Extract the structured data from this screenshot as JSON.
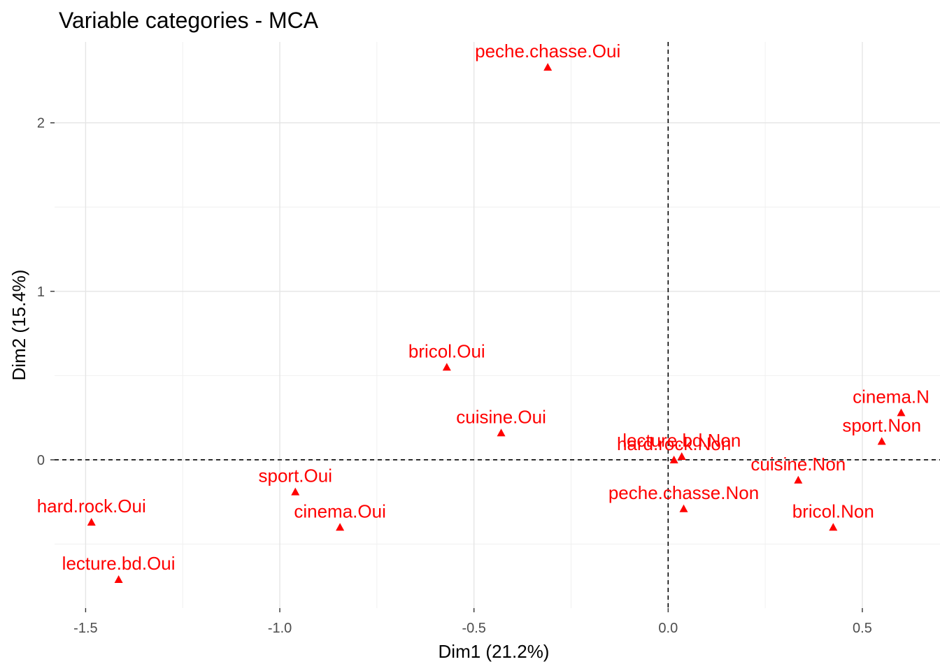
{
  "chart_data": {
    "type": "scatter",
    "title": "Variable categories - MCA",
    "xlabel": "Dim1 (21.2%)",
    "ylabel": "Dim2 (15.4%)",
    "xlim": [
      -1.58,
      0.7
    ],
    "ylim": [
      -0.88,
      2.48
    ],
    "xticks": [
      -1.5,
      -1.0,
      -0.5,
      0.0,
      0.5
    ],
    "xtick_labels": [
      "-1.5",
      "-1.0",
      "-0.5",
      "0.0",
      "0.5"
    ],
    "yticks": [
      0,
      1,
      2
    ],
    "ytick_labels": [
      "0",
      "1",
      "2"
    ],
    "grid": true,
    "reference_lines": {
      "x": 0,
      "y": 0,
      "style": "dashed"
    },
    "marker": "triangle",
    "color": "#ff0000",
    "points": [
      {
        "label": "peche.chasse.Oui",
        "x": -0.31,
        "y": 2.33
      },
      {
        "label": "bricol.Oui",
        "x": -0.57,
        "y": 0.55
      },
      {
        "label": "cuisine.Oui",
        "x": -0.43,
        "y": 0.16
      },
      {
        "label": "cinema.Non",
        "x": 0.6,
        "y": 0.28
      },
      {
        "label": "sport.Non",
        "x": 0.55,
        "y": 0.11
      },
      {
        "label": "lecture.bd.Non",
        "x": 0.035,
        "y": 0.02
      },
      {
        "label": "hard.rock.Non",
        "x": 0.015,
        "y": 0.0
      },
      {
        "label": "cuisine.Non",
        "x": 0.335,
        "y": -0.12
      },
      {
        "label": "peche.chasse.Non",
        "x": 0.04,
        "y": -0.29
      },
      {
        "label": "bricol.Non",
        "x": 0.425,
        "y": -0.4
      },
      {
        "label": "sport.Oui",
        "x": -0.96,
        "y": -0.19
      },
      {
        "label": "cinema.Oui",
        "x": -0.845,
        "y": -0.4
      },
      {
        "label": "hard.rock.Oui",
        "x": -1.485,
        "y": -0.37
      },
      {
        "label": "lecture.bd.Oui",
        "x": -1.415,
        "y": -0.71
      }
    ]
  }
}
